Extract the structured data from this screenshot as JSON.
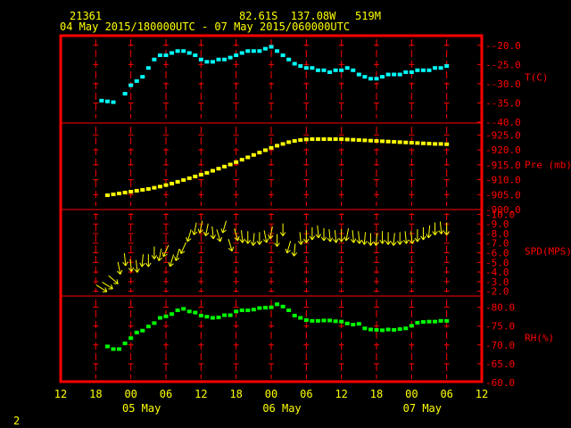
{
  "header": {
    "station_id": "21361",
    "location": "82.61S  137.08W   519M",
    "period": "04 May 2015/180000UTC - 07 May 2015/060000UTC"
  },
  "footer": {
    "page_number": "2"
  },
  "colors": {
    "background": "#000000",
    "frame": "#ff0000",
    "text": "#ffff00",
    "axis_labels": "#ff0000",
    "temperature": "#00ffff",
    "pressure": "#ffff00",
    "wind": "#ffff00",
    "humidity": "#00ff00"
  },
  "chart_data": {
    "type": "scatter",
    "x_unit": "hours_since_2015-05-04T12Z",
    "xlim": [
      0,
      72
    ],
    "x_ticks": [
      {
        "value": 0,
        "label": "12"
      },
      {
        "value": 6,
        "label": "18"
      },
      {
        "value": 12,
        "label": "00"
      },
      {
        "value": 18,
        "label": "06"
      },
      {
        "value": 24,
        "label": "12"
      },
      {
        "value": 30,
        "label": "18"
      },
      {
        "value": 36,
        "label": "00"
      },
      {
        "value": 42,
        "label": "06"
      },
      {
        "value": 48,
        "label": "12"
      },
      {
        "value": 54,
        "label": "18"
      },
      {
        "value": 60,
        "label": "00"
      },
      {
        "value": 66,
        "label": "06"
      },
      {
        "value": 72,
        "label": "12"
      }
    ],
    "date_labels": [
      {
        "value": 12,
        "label": "05 May"
      },
      {
        "value": 36,
        "label": "06 May"
      },
      {
        "value": 60,
        "label": "07 May"
      }
    ],
    "panels": [
      {
        "name": "T(C)",
        "color": "#00ffff",
        "ylim": [
          -40,
          -17.5
        ],
        "y_ticks": [
          -40,
          -35,
          -30,
          -25,
          -20
        ],
        "y_tick_labels": [
          "-40.0",
          "-35.0",
          "-30.0",
          "-25.0",
          "-20.0"
        ],
        "x": [
          7,
          8,
          9,
          11,
          12,
          13,
          14,
          15,
          16,
          17,
          18,
          19,
          20,
          21,
          22,
          23,
          24,
          25,
          26,
          27,
          28,
          29,
          30,
          31,
          32,
          33,
          34,
          35,
          36,
          37,
          38,
          39,
          40,
          41,
          42,
          43,
          44,
          45,
          46,
          47,
          48,
          49,
          50,
          51,
          52,
          53,
          54,
          55,
          56,
          57,
          58,
          59,
          60,
          61,
          62,
          63,
          64,
          65,
          66
        ],
        "y": [
          -34.4,
          -34.6,
          -34.8,
          -32.6,
          -30.4,
          -29.3,
          -28.2,
          -25.9,
          -23.7,
          -22.6,
          -22.6,
          -22.0,
          -21.5,
          -21.5,
          -22.0,
          -22.6,
          -23.7,
          -24.3,
          -24.3,
          -23.7,
          -23.7,
          -23.2,
          -22.6,
          -22.0,
          -21.5,
          -21.5,
          -21.5,
          -20.9,
          -20.4,
          -21.5,
          -22.6,
          -23.7,
          -24.8,
          -25.4,
          -25.9,
          -25.9,
          -26.5,
          -26.5,
          -27.0,
          -26.5,
          -26.5,
          -25.9,
          -26.5,
          -27.6,
          -28.2,
          -28.7,
          -28.7,
          -28.2,
          -27.6,
          -27.6,
          -27.6,
          -27.0,
          -27.0,
          -26.5,
          -26.5,
          -26.5,
          -25.9,
          -25.9,
          -25.4
        ]
      },
      {
        "name": "Pre (mb)",
        "color": "#ffff00",
        "ylim": [
          900,
          929
        ],
        "y_ticks": [
          900,
          905,
          910,
          915,
          920,
          925
        ],
        "y_tick_labels": [
          "900.0",
          "905.0",
          "910.0",
          "915.0",
          "920.0",
          "925.0"
        ],
        "x": [
          8,
          9,
          10,
          11,
          12,
          13,
          14,
          15,
          16,
          17,
          18,
          19,
          20,
          21,
          22,
          23,
          24,
          25,
          26,
          27,
          28,
          29,
          30,
          31,
          32,
          33,
          34,
          35,
          36,
          37,
          38,
          39,
          40,
          41,
          42,
          43,
          44,
          45,
          46,
          47,
          48,
          49,
          50,
          51,
          52,
          53,
          54,
          55,
          56,
          57,
          58,
          59,
          60,
          61,
          62,
          63,
          64,
          65,
          66
        ],
        "y": [
          904.8,
          905.1,
          905.4,
          905.7,
          906.0,
          906.3,
          906.6,
          906.9,
          907.3,
          907.7,
          908.2,
          908.7,
          909.3,
          909.9,
          910.5,
          911.1,
          911.7,
          912.3,
          913.0,
          913.7,
          914.4,
          915.1,
          915.9,
          916.7,
          917.5,
          918.3,
          919.1,
          919.9,
          920.7,
          921.4,
          922.0,
          922.6,
          923.0,
          923.3,
          923.5,
          923.6,
          923.6,
          923.6,
          923.6,
          923.6,
          923.6,
          923.5,
          923.4,
          923.3,
          923.2,
          923.1,
          923.0,
          922.9,
          922.8,
          922.7,
          922.6,
          922.5,
          922.4,
          922.3,
          922.2,
          922.1,
          922.0,
          922.0,
          921.9
        ]
      },
      {
        "name": "SPD(MPS)",
        "color": "#ffff00",
        "ylim": [
          1.5,
          10.5
        ],
        "y_ticks": [
          2,
          3,
          4,
          5,
          6,
          7,
          8,
          9,
          10
        ],
        "y_tick_labels": [
          "2.0",
          "3.0",
          "4.0",
          "5.0",
          "6.0",
          "7.0",
          "8.0",
          "9.0",
          "10.0"
        ],
        "x": [
          7,
          8,
          9,
          10,
          11,
          12,
          13,
          14,
          15,
          16,
          17,
          18,
          19,
          20,
          21,
          22,
          23,
          24,
          25,
          26,
          27,
          28,
          29,
          30,
          31,
          32,
          33,
          34,
          35,
          36,
          37,
          38,
          39,
          40,
          41,
          42,
          43,
          44,
          45,
          46,
          47,
          48,
          49,
          50,
          51,
          52,
          53,
          54,
          55,
          56,
          57,
          58,
          59,
          60,
          61,
          62,
          63,
          64,
          65,
          66
        ],
        "y": [
          2.3,
          2.6,
          3.2,
          4.4,
          5.3,
          4.7,
          4.6,
          5.2,
          5.2,
          6.0,
          5.8,
          6.2,
          5.2,
          5.8,
          6.5,
          7.8,
          8.5,
          8.7,
          8.4,
          8.1,
          7.8,
          8.7,
          6.8,
          7.9,
          7.7,
          7.6,
          7.4,
          7.5,
          7.7,
          8.1,
          7.3,
          8.4,
          6.6,
          6.3,
          7.5,
          7.7,
          8.0,
          8.2,
          7.9,
          7.8,
          7.7,
          7.8,
          7.9,
          7.7,
          7.6,
          7.5,
          7.4,
          7.4,
          7.6,
          7.5,
          7.4,
          7.5,
          7.6,
          7.6,
          7.8,
          8.0,
          8.2,
          8.5,
          8.6,
          8.5
        ],
        "u": [
          0.8,
          0.8,
          0.7,
          0.2,
          0.1,
          0.1,
          0.1,
          -0.1,
          0.0,
          0.0,
          -0.2,
          -0.4,
          -0.3,
          -0.3,
          -0.4,
          -0.3,
          -0.2,
          -0.2,
          -0.2,
          0.1,
          0.3,
          -0.3,
          0.3,
          0.3,
          0.1,
          0.0,
          -0.1,
          0.0,
          0.2,
          -0.2,
          0.0,
          0.0,
          -0.3,
          -0.1,
          0.1,
          0.0,
          0.0,
          0.1,
          0.0,
          0.1,
          0.1,
          0.0,
          -0.2,
          0.1,
          0.1,
          -0.1,
          0.0,
          -0.1,
          0.0,
          0.0,
          -0.1,
          0.0,
          0.1,
          0.1,
          0.0,
          0.0,
          -0.1,
          0.0,
          0.1,
          0.0
        ],
        "v": [
          -0.5,
          -0.5,
          -0.6,
          -1.0,
          -1.0,
          -1.0,
          -1.0,
          -1.0,
          -1.0,
          -1.0,
          -1.0,
          -0.9,
          -1.0,
          -1.0,
          -0.9,
          -1.0,
          -1.0,
          -1.0,
          -1.0,
          -1.0,
          -1.0,
          -1.0,
          -1.0,
          -1.0,
          -1.0,
          -1.0,
          -1.0,
          -1.0,
          -1.0,
          -1.0,
          -1.0,
          -1.0,
          -1.0,
          -1.0,
          -1.0,
          -1.0,
          -1.0,
          -1.0,
          -1.0,
          -1.0,
          -1.0,
          -1.0,
          -1.0,
          -1.0,
          -1.0,
          -1.0,
          -1.0,
          -1.0,
          -1.0,
          -1.0,
          -1.0,
          -1.0,
          -1.0,
          -1.0,
          -1.0,
          -1.0,
          -1.0,
          -1.0,
          -1.0,
          -1.0
        ]
      },
      {
        "name": "RH(%)",
        "color": "#00ff00",
        "ylim": [
          60,
          83
        ],
        "y_ticks": [
          60,
          65,
          70,
          75,
          80
        ],
        "y_tick_labels": [
          "60.0",
          "65.0",
          "70.0",
          "75.0",
          "80.0"
        ],
        "x": [
          8,
          9,
          10,
          11,
          12,
          13,
          14,
          15,
          16,
          17,
          18,
          19,
          20,
          21,
          22,
          23,
          24,
          25,
          26,
          27,
          28,
          29,
          30,
          31,
          32,
          33,
          34,
          35,
          36,
          37,
          38,
          39,
          40,
          41,
          42,
          43,
          44,
          45,
          46,
          47,
          48,
          49,
          50,
          51,
          52,
          53,
          54,
          55,
          56,
          57,
          58,
          59,
          60,
          61,
          62,
          63,
          64,
          65,
          66
        ],
        "y": [
          69.6,
          68.9,
          68.9,
          70.4,
          71.8,
          73.3,
          73.8,
          74.9,
          75.8,
          77.2,
          77.6,
          78.2,
          79.2,
          79.6,
          78.9,
          78.6,
          77.8,
          77.5,
          77.2,
          77.3,
          77.9,
          77.9,
          78.9,
          79.2,
          79.2,
          79.4,
          79.8,
          79.9,
          80.0,
          80.8,
          80.2,
          79.2,
          77.8,
          77.2,
          76.6,
          76.4,
          76.4,
          76.5,
          76.5,
          76.3,
          76.2,
          75.7,
          75.4,
          75.6,
          74.4,
          74.1,
          74.0,
          73.9,
          74.1,
          74.0,
          74.2,
          74.4,
          75.1,
          75.9,
          76.1,
          76.2,
          76.2,
          76.4,
          76.4
        ]
      }
    ]
  }
}
